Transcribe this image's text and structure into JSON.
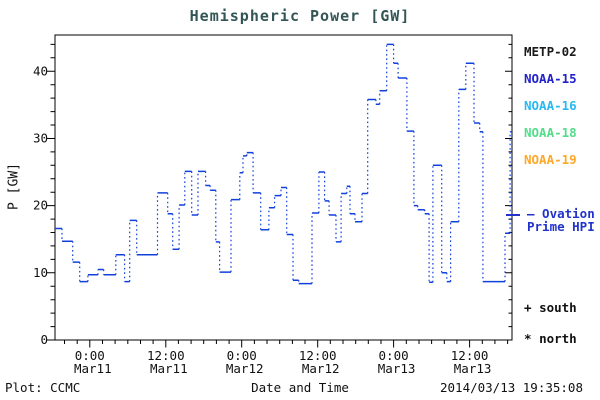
{
  "title": {
    "text": "Hemispheric Power [GW]",
    "color": "#335555"
  },
  "y_axis": {
    "label": "P [GW]",
    "tick_labels": [
      "0",
      "10",
      "20",
      "30",
      "40"
    ],
    "tick_values": [
      0,
      10,
      20,
      30,
      40
    ],
    "minor_step": 2
  },
  "legend": {
    "satellites": [
      {
        "label": "METP-02",
        "color": "#1a1a1a"
      },
      {
        "label": "NOAA-15",
        "color": "#2222cc"
      },
      {
        "label": "NOAA-16",
        "color": "#29b9f2"
      },
      {
        "label": "NOAA-18",
        "color": "#52dd8a"
      },
      {
        "label": "NOAA-19",
        "color": "#ffa726"
      }
    ],
    "ovation": {
      "line1": "– Ovation",
      "line2": "Prime HPI",
      "color": "#2233cc"
    },
    "hemispheres": [
      {
        "symbol": "+",
        "label": "south"
      },
      {
        "symbol": "*",
        "label": "north"
      }
    ]
  },
  "footer": {
    "left": "Plot: CCMC",
    "timestamp": "2014/03/13 19:35:08"
  },
  "chart_data": {
    "type": "line",
    "subtype": "step-post",
    "title": "Hemispheric Power [GW]",
    "xlabel": "Date and Time",
    "ylabel": "P [GW]",
    "ylim": [
      0,
      45.4
    ],
    "grid": false,
    "legend_position": "right-outside",
    "x_unit": "hours from 2014-03-11 00:00 UT",
    "xlim_hours": [
      -5.5,
      66.7
    ],
    "x_ticks": [
      {
        "t": 0,
        "time": "0:00",
        "date": "Mar11"
      },
      {
        "t": 12,
        "time": "12:00",
        "date": "Mar11"
      },
      {
        "t": 24,
        "time": "0:00",
        "date": "Mar12"
      },
      {
        "t": 36,
        "time": "12:00",
        "date": "Mar12"
      },
      {
        "t": 48,
        "time": "0:00",
        "date": "Mar13"
      },
      {
        "t": 60,
        "time": "12:00",
        "date": "Mar13"
      }
    ],
    "x_minor_step_hours": 2,
    "series": [
      {
        "name": "Ovation Prime HPI",
        "color": "#1141dd",
        "line_style": "solid horizontals, dotted verticals",
        "step_format": [
          "t_hours",
          "gw"
        ],
        "end_t": 66.7,
        "steps": [
          [
            -5.5,
            16.6
          ],
          [
            -4.4,
            14.7
          ],
          [
            -2.7,
            11.6
          ],
          [
            -1.6,
            8.7
          ],
          [
            -0.3,
            9.7
          ],
          [
            1.3,
            10.5
          ],
          [
            2.2,
            9.7
          ],
          [
            4.1,
            12.7
          ],
          [
            5.5,
            8.7
          ],
          [
            6.3,
            17.8
          ],
          [
            7.4,
            12.7
          ],
          [
            10.7,
            21.9
          ],
          [
            12.3,
            18.8
          ],
          [
            13.1,
            13.5
          ],
          [
            14.1,
            20.1
          ],
          [
            15.0,
            25.1
          ],
          [
            16.1,
            18.6
          ],
          [
            17.1,
            25.1
          ],
          [
            18.3,
            23.0
          ],
          [
            19.0,
            22.3
          ],
          [
            19.9,
            14.6
          ],
          [
            20.5,
            10.1
          ],
          [
            22.3,
            20.9
          ],
          [
            23.7,
            24.9
          ],
          [
            24.2,
            27.4
          ],
          [
            24.8,
            27.9
          ],
          [
            25.8,
            21.9
          ],
          [
            27.0,
            16.4
          ],
          [
            28.3,
            19.7
          ],
          [
            29.2,
            21.5
          ],
          [
            30.2,
            22.7
          ],
          [
            31.1,
            15.7
          ],
          [
            32.1,
            8.9
          ],
          [
            33.0,
            8.4
          ],
          [
            35.1,
            18.9
          ],
          [
            36.2,
            25.0
          ],
          [
            37.1,
            20.7
          ],
          [
            37.8,
            18.6
          ],
          [
            38.9,
            14.6
          ],
          [
            39.7,
            21.8
          ],
          [
            40.6,
            22.9
          ],
          [
            41.1,
            18.8
          ],
          [
            41.9,
            17.6
          ],
          [
            43.0,
            21.8
          ],
          [
            43.9,
            35.8
          ],
          [
            45.2,
            35.1
          ],
          [
            45.8,
            37.1
          ],
          [
            46.9,
            44.0
          ],
          [
            48.0,
            41.2
          ],
          [
            48.7,
            39.0
          ],
          [
            50.1,
            31.1
          ],
          [
            51.2,
            20.0
          ],
          [
            51.8,
            19.4
          ],
          [
            52.9,
            18.8
          ],
          [
            53.6,
            8.6
          ],
          [
            54.2,
            26.0
          ],
          [
            55.6,
            10.0
          ],
          [
            56.4,
            8.7
          ],
          [
            57.0,
            17.6
          ],
          [
            58.3,
            37.3
          ],
          [
            59.4,
            41.2
          ],
          [
            60.7,
            32.3
          ],
          [
            61.6,
            31.0
          ],
          [
            62.1,
            8.7
          ],
          [
            65.6,
            15.9
          ],
          [
            66.4,
            31.0
          ]
        ]
      }
    ]
  }
}
